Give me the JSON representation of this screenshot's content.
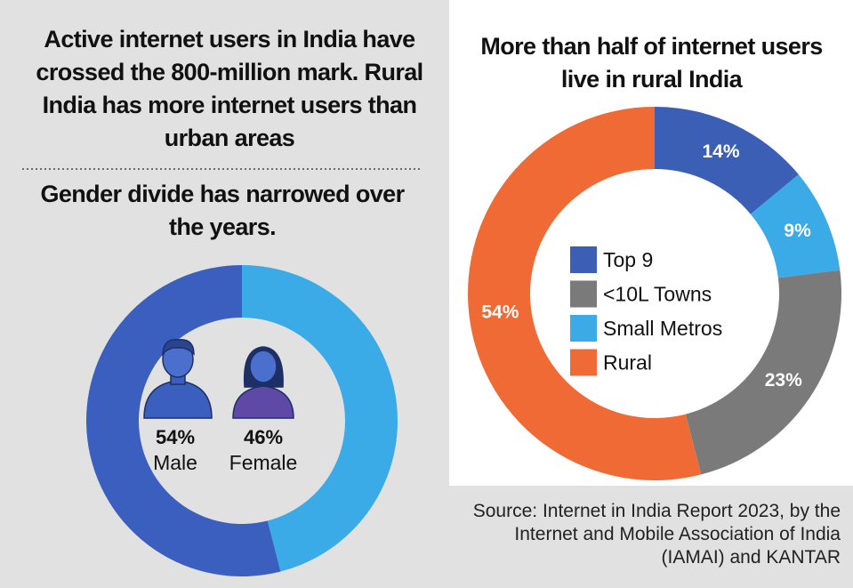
{
  "headline": "Active internet users in India have crossed the 800-million mark. Rural India has more internet users than urban areas",
  "source": "Source: Internet in India Report 2023, by the Internet and Mobile Association of India (IAMAI) and KANTAR",
  "chart_data": [
    {
      "type": "pie",
      "title": "Gender divide has narrowed over the years.",
      "categories": [
        "Male",
        "Female"
      ],
      "values": [
        54,
        46
      ],
      "value_labels": [
        "54%",
        "46%"
      ],
      "colors": [
        "#3a5fbf",
        "#3aabe6"
      ],
      "clockwise": false
    },
    {
      "type": "pie",
      "title": "More than half of internet users live in rural India",
      "categories": [
        "Top 9",
        "Small Metros",
        "<10L Towns",
        "Rural"
      ],
      "values": [
        14,
        9,
        23,
        54
      ],
      "value_labels": [
        "14%",
        "9%",
        "23%",
        "54%"
      ],
      "colors": [
        "#3a5fb5",
        "#3aabe6",
        "#7a7a7a",
        "#f06a35"
      ],
      "clockwise": true,
      "legend_order": [
        0,
        2,
        1,
        3
      ]
    }
  ]
}
